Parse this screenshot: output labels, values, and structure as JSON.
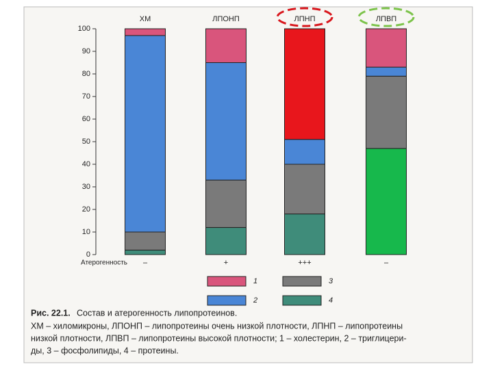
{
  "chart_data": {
    "type": "stacked_bar",
    "categories": [
      "ХМ",
      "ЛПОНП",
      "ЛПНП",
      "ЛПВП"
    ],
    "ylim": [
      0,
      100
    ],
    "yticks": [
      0,
      10,
      20,
      30,
      40,
      50,
      60,
      70,
      80,
      90,
      100
    ],
    "series": [
      {
        "name": "1",
        "color": "#d9557c",
        "colors": [
          "#d9557c",
          "#d9557c",
          "#e8161c",
          "#d9557c"
        ],
        "values": [
          3,
          15,
          49,
          17
        ]
      },
      {
        "name": "2",
        "color": "#4a86d6",
        "colors": [
          "#4a86d6",
          "#4a86d6",
          "#4a86d6",
          "#4a86d6"
        ],
        "values": [
          87,
          52,
          11,
          4
        ]
      },
      {
        "name": "3",
        "color": "#7a7a7a",
        "colors": [
          "#7a7a7a",
          "#7a7a7a",
          "#7a7a7a",
          "#7a7a7a"
        ],
        "values": [
          8,
          21,
          22,
          32
        ]
      },
      {
        "name": "4",
        "color": "#3f8c7a",
        "colors": [
          "#3f8c7a",
          "#3f8c7a",
          "#3f8c7a",
          "#17b84c"
        ],
        "values": [
          2,
          12,
          18,
          47
        ]
      }
    ],
    "row_label": "Атерогенность",
    "row_values": [
      "–",
      "+",
      "+++",
      "–"
    ],
    "caption_title": "Рис. 22.1.",
    "caption_subtitle": "Состав и атерогенность липопротеинов.",
    "caption_lines": [
      "ХМ – хиломикроны, ЛПОНП – липопротеины очень низкой плотности, ЛПНП – липопротеины",
      "низкой плотности, ЛПВП – липопротеины высокой плотности; 1 – холестерин, 2 – триглицери-",
      "ды, 3 – фосфолипиды, 4 – протеины."
    ]
  }
}
